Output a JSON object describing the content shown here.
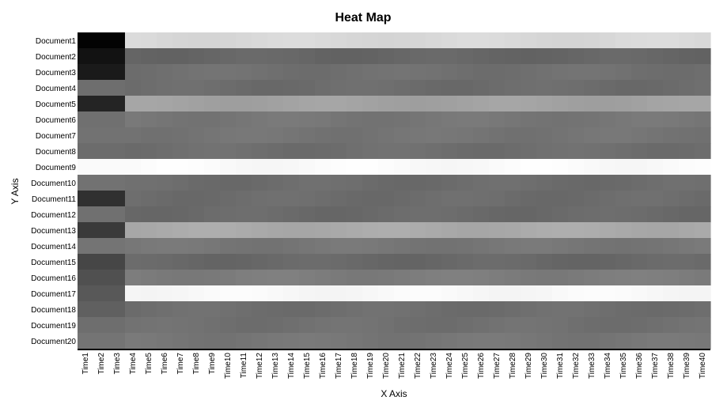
{
  "chart_data": {
    "type": "heatmap",
    "title": "Heat Map",
    "xlabel": "X Axis",
    "ylabel": "Y Axis",
    "x": [
      "Time1",
      "Time2",
      "Time3",
      "Time4",
      "Time5",
      "Time6",
      "Time7",
      "Time8",
      "Time9",
      "Time10",
      "Time11",
      "Time12",
      "Time13",
      "Time14",
      "Time15",
      "Time16",
      "Time17",
      "Time18",
      "Time19",
      "Time20",
      "Time21",
      "Time22",
      "Time23",
      "Time24",
      "Time25",
      "Time26",
      "Time27",
      "Time28",
      "Time29",
      "Time30",
      "Time31",
      "Time32",
      "Time33",
      "Time34",
      "Time35",
      "Time36",
      "Time37",
      "Time38",
      "Time39",
      "Time40"
    ],
    "y": [
      "Document1",
      "Document2",
      "Document3",
      "Document4",
      "Document5",
      "Document6",
      "Document7",
      "Document8",
      "Document9",
      "Document10",
      "Document11",
      "Document12",
      "Document13",
      "Document14",
      "Document15",
      "Document16",
      "Document17",
      "Document18",
      "Document19",
      "Document20"
    ],
    "colormap": "grayscale",
    "row_profiles": [
      {
        "first": [
          3,
          3,
          3
        ],
        "rest": 216
      },
      {
        "first": [
          18,
          18,
          18
        ],
        "rest": 102
      },
      {
        "first": [
          26,
          26,
          26
        ],
        "rest": 112
      },
      {
        "first": [
          110,
          110,
          110
        ],
        "rest": 108
      },
      {
        "first": [
          36,
          36,
          36
        ],
        "rest": 162
      },
      {
        "first": [
          112,
          112,
          112
        ],
        "rest": 118
      },
      {
        "first": [
          114,
          114,
          114
        ],
        "rest": 116
      },
      {
        "first": [
          108,
          108,
          108
        ],
        "rest": 110
      },
      {
        "first": [
          250,
          250,
          250
        ],
        "rest": 250
      },
      {
        "first": [
          114,
          114,
          114
        ],
        "rest": 108
      },
      {
        "first": [
          48,
          48,
          48
        ],
        "rest": 108
      },
      {
        "first": [
          112,
          112,
          112
        ],
        "rest": 106
      },
      {
        "first": [
          58,
          58,
          58
        ],
        "rest": 170
      },
      {
        "first": [
          116,
          116,
          116
        ],
        "rest": 118
      },
      {
        "first": [
          70,
          70,
          70
        ],
        "rest": 104
      },
      {
        "first": [
          80,
          80,
          80
        ],
        "rest": 124
      },
      {
        "first": [
          88,
          88,
          88
        ],
        "rest": 248
      },
      {
        "first": [
          96,
          96,
          96
        ],
        "rest": 110
      },
      {
        "first": [
          110,
          110,
          110
        ],
        "rest": 112
      },
      {
        "first": [
          116,
          116,
          116
        ],
        "rest": 118
      }
    ]
  }
}
